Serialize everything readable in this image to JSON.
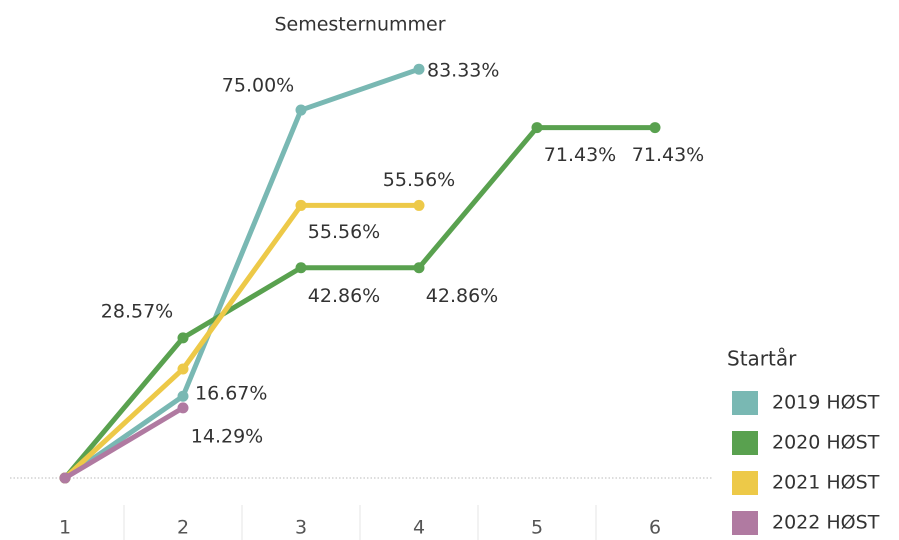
{
  "chart_data": {
    "type": "line",
    "title": "Semesternummer",
    "categories": [
      "1",
      "2",
      "3",
      "4",
      "5",
      "6"
    ],
    "ylim": [
      0,
      85
    ],
    "legend_title": "Startår",
    "legend_position": "right",
    "series": [
      {
        "name": "2019 HØST",
        "color": "#79b8b3",
        "values": [
          0,
          16.67,
          75.0,
          83.33,
          null,
          null
        ],
        "value_labels": [
          null,
          "16.67%",
          "75.00%",
          "83.33%",
          null,
          null
        ]
      },
      {
        "name": "2020 HØST",
        "color": "#59a14f",
        "values": [
          0,
          28.57,
          42.86,
          42.86,
          71.43,
          71.43
        ],
        "value_labels": [
          null,
          "28.57%",
          "42.86%",
          "42.86%",
          "71.43%",
          "71.43%"
        ]
      },
      {
        "name": "2021 HØST",
        "color": "#edc948",
        "values": [
          0,
          22.22,
          55.56,
          55.56,
          null,
          null
        ],
        "value_labels": [
          null,
          null,
          "55.56%",
          "55.56%",
          null,
          null
        ]
      },
      {
        "name": "2022 HØST",
        "color": "#b07aa1",
        "values": [
          0,
          14.29,
          null,
          null,
          null,
          null
        ],
        "value_labels": [
          null,
          "14.29%",
          null,
          null,
          null,
          null
        ]
      }
    ]
  }
}
